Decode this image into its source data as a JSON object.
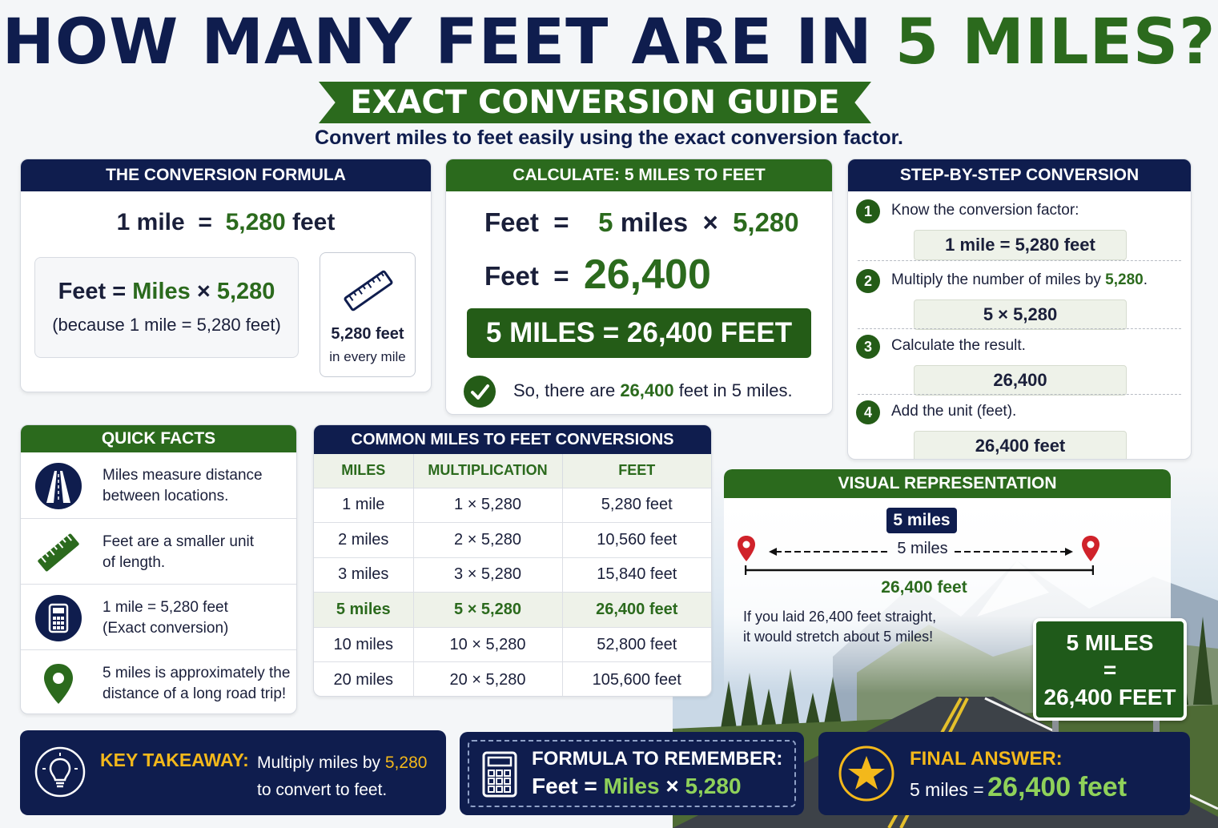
{
  "header": {
    "title_prefix": "HOW MANY FEET ARE IN ",
    "title_highlight": "5 MILES?",
    "ribbon": "EXACT CONVERSION GUIDE",
    "subtitle": "Convert miles to feet easily using the exact conversion factor."
  },
  "formula_panel": {
    "heading": "THE CONVERSION FORMULA",
    "line1_left": "1 mile",
    "line1_eq": "=",
    "line1_right": "5,280",
    "line1_unit": "feet",
    "eq_left": "Feet",
    "eq_equals": "=",
    "eq_miles": "Miles",
    "eq_times": "×",
    "eq_factor": "5,280",
    "note": "(because 1 mile  =  5,280 feet)",
    "ruler_line1": "5,280 feet",
    "ruler_line2": "in every mile"
  },
  "calc_panel": {
    "heading": "CALCULATE: 5 MILES TO FEET",
    "row1_left": "Feet",
    "row1_eq": "=",
    "row1_mid": "5",
    "row1_miles": "miles",
    "row1_times": "×",
    "row1_factor": "5,280",
    "row2_left": "Feet",
    "row2_eq": "=",
    "row2_result": "26,400",
    "banner": "5 MILES = 26,400 FEET",
    "so_prefix": "So, there are ",
    "so_value": "26,400",
    "so_suffix": " feet in 5 miles."
  },
  "steps_panel": {
    "heading": "STEP-BY-STEP CONVERSION",
    "steps": [
      {
        "num": "1",
        "label": "Know the conversion factor:",
        "box": "1 mile  =  5,280 feet"
      },
      {
        "num": "2",
        "label_prefix": "Multiply the number of miles by ",
        "label_value": "5,280",
        "label_suffix": ".",
        "box": "5  ×  5,280"
      },
      {
        "num": "3",
        "label": "Calculate the result.",
        "box": "26,400"
      },
      {
        "num": "4",
        "label": "Add the unit (feet).",
        "box": "26,400 feet"
      }
    ]
  },
  "quick_facts": {
    "heading": "QUICK FACTS",
    "items": [
      {
        "icon": "road-icon",
        "line1": "Miles measure distance",
        "line2": "between locations."
      },
      {
        "icon": "ruler-icon",
        "line1": "Feet are a smaller unit",
        "line2": "of length."
      },
      {
        "icon": "calculator-icon",
        "line1": "1 mile = 5,280 feet",
        "line2": "(Exact conversion)"
      },
      {
        "icon": "map-pin-icon",
        "line1": "5 miles is approximately the",
        "line2": "distance of a long road trip!"
      }
    ]
  },
  "table": {
    "heading": "COMMON MILES TO FEET CONVERSIONS",
    "columns": [
      "MILES",
      "MULTIPLICATION",
      "FEET"
    ],
    "rows": [
      [
        "1 mile",
        "1 × 5,280",
        "5,280 feet"
      ],
      [
        "2 miles",
        "2 × 5,280",
        "10,560 feet"
      ],
      [
        "3 miles",
        "3 × 5,280",
        "15,840 feet"
      ],
      [
        "5 miles",
        "5 × 5,280",
        "26,400 feet"
      ],
      [
        "10 miles",
        "10 × 5,280",
        "52,800 feet"
      ],
      [
        "20 miles",
        "20 × 5,280",
        "105,600 feet"
      ]
    ],
    "highlight_row": 3
  },
  "visual": {
    "heading": "VISUAL REPRESENTATION",
    "pill": "5 miles",
    "arrow_label": "5 miles",
    "feet_label": "26,400 feet",
    "caption_line1": "If you laid 26,400 feet straight,",
    "caption_line2": "it would stretch about 5 miles!"
  },
  "road_sign": {
    "line1": "5 MILES",
    "line2": "=",
    "line3": "26,400 FEET"
  },
  "bottom": {
    "takeaway_title": "KEY TAKEAWAY:",
    "takeaway_prefix": "Multiply miles by ",
    "takeaway_value": "5,280",
    "takeaway_line2": "to convert to feet.",
    "formula_title": "FORMULA TO REMEMBER:",
    "formula_left": "Feet",
    "formula_eq": "=",
    "formula_miles": "Miles",
    "formula_times": "×",
    "formula_factor": "5,280",
    "final_title": "FINAL ANSWER:",
    "final_prefix": "5 miles  =",
    "final_value": "26,400 feet"
  },
  "colors": {
    "navy": "#0f1d4e",
    "green": "#2b6a1d",
    "gold": "#f3b81b",
    "light_green_bg": "#eef2e9"
  }
}
